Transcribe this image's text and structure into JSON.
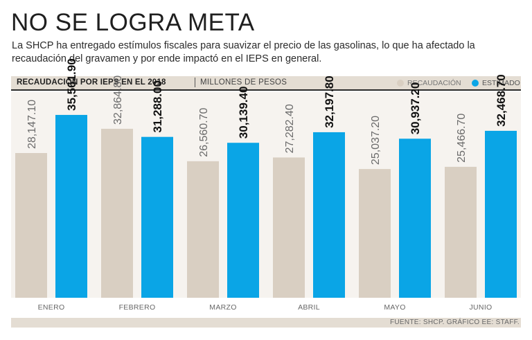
{
  "title": "NO SE LOGRA META",
  "subtitle": "La SHCP ha entregado estímulos fiscales para suavizar el precio de las gasolinas, lo que ha afectado la recaudación del gravamen y por ende impactó en el IEPS en general.",
  "header": {
    "chart_title": "RECAUDACIÓN POR IEPS EN EL 2018",
    "unit": "MILLONES DE PESOS"
  },
  "legend": {
    "recaudacion": "RECAUDACIÓN",
    "estimado": "ESTIMADO"
  },
  "colors": {
    "recaudacion": "#d9cfc2",
    "estimado": "#0aa5e6",
    "header_bg": "#e4ddd3",
    "chart_bg": "#f6f3ef"
  },
  "source": "FUENTE: SHCP. GRÁFICO EE: STAFF.",
  "chart_data": {
    "type": "bar",
    "title": "RECAUDACIÓN POR IEPS EN EL 2018",
    "ylabel": "MILLONES DE PESOS",
    "xlabel": "",
    "ylim": [
      0,
      40000
    ],
    "categories": [
      "ENERO",
      "FEBRERO",
      "MARZO",
      "ABRIL",
      "MAYO",
      "JUNIO"
    ],
    "series": [
      {
        "name": "RECAUDACIÓN",
        "values": [
          28147.1,
          32864.8,
          26560.7,
          27282.4,
          25037.2,
          25466.7
        ],
        "labels": [
          "28,147.10",
          "32,864.80",
          "26,560.70",
          "27,282.40",
          "25,037.20",
          "25,466.70"
        ]
      },
      {
        "name": "ESTIMADO",
        "values": [
          35561.9,
          31288.0,
          30139.4,
          32197.8,
          30937.2,
          32468.7
        ],
        "labels": [
          "35,561.90",
          "31,288.00",
          "30,139.40",
          "32,197.80",
          "30,937.20",
          "32,468.70"
        ]
      }
    ]
  }
}
